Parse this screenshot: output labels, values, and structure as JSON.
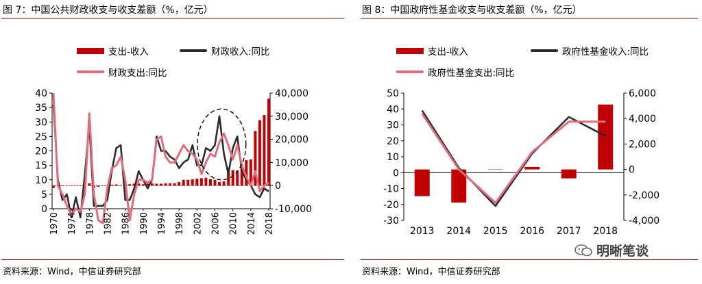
{
  "left": {
    "title": "图 7：中国公共财政收支与收支差额（%，亿元）",
    "source": "资料来源：Wind，中信证券研究部",
    "legend": {
      "bar": "支出-收入",
      "line1": "财政收入:同比",
      "line2": "财政支出:同比"
    }
  },
  "right": {
    "title": "图 8：中国政府性基金收支与收支差额（%，亿元）",
    "source": "资料来源：Wind，中信证券研究部",
    "legend": {
      "bar": "支出-收入",
      "line1": "政府性基金收入:同比",
      "line2": "政府性基金支出:同比"
    }
  },
  "watermark": "明晰笔谈",
  "colors": {
    "bar": "#c00000",
    "revenue_line": "#2b2b2b",
    "expenditure_line": "#e46c7a",
    "rule": "#7a0000"
  },
  "chart_data": [
    {
      "type": "bar+line",
      "x": [
        1970,
        1971,
        1972,
        1973,
        1974,
        1975,
        1976,
        1977,
        1978,
        1979,
        1980,
        1981,
        1982,
        1983,
        1984,
        1985,
        1986,
        1987,
        1988,
        1989,
        1990,
        1991,
        1992,
        1993,
        1994,
        1995,
        1996,
        1997,
        1998,
        1999,
        2000,
        2001,
        2002,
        2003,
        2004,
        2005,
        2006,
        2007,
        2008,
        2009,
        2010,
        2011,
        2012,
        2013,
        2014,
        2015,
        2016,
        2017,
        2018
      ],
      "x_ticks": [
        "1970",
        "1974",
        "1978",
        "1982",
        "1986",
        "1990",
        "1994",
        "1998",
        "2002",
        "2006",
        "2010",
        "2014",
        "2018"
      ],
      "y_left": {
        "range": [
          0,
          40
        ],
        "ticks": [
          "0",
          "5",
          "10",
          "15",
          "20",
          "25",
          "30",
          "35",
          "40"
        ]
      },
      "y_right": {
        "range": [
          -10000,
          40000
        ],
        "ticks": [
          "-10,000",
          "0",
          "10,000",
          "20,000",
          "30,000",
          "40,000"
        ]
      },
      "series": [
        {
          "name": "支出-收入",
          "type": "bar",
          "axis": "right",
          "values": [
            -1000,
            0,
            0,
            0,
            -100,
            0,
            0,
            0,
            1000,
            -1000,
            -500,
            0,
            200,
            400,
            500,
            0,
            200,
            600,
            800,
            900,
            600,
            800,
            900,
            800,
            800,
            1000,
            1000,
            1000,
            1500,
            2500,
            2500,
            2700,
            3000,
            3200,
            3400,
            2800,
            2500,
            1600,
            1800,
            7800,
            6700,
            6500,
            8500,
            11000,
            11300,
            23600,
            28300,
            30500,
            37600
          ]
        },
        {
          "name": "财政收入:同比",
          "type": "line",
          "axis": "left",
          "values": [
            36,
            10,
            3,
            5,
            -3,
            4,
            -3,
            12,
            29,
            1,
            1,
            1,
            3,
            13,
            21,
            22,
            3,
            3,
            7,
            13,
            10,
            7,
            10,
            25,
            20,
            20,
            18,
            17,
            14,
            16,
            17,
            22,
            15,
            15,
            21,
            20,
            22,
            32,
            19,
            12,
            21,
            25,
            13,
            10,
            8,
            5,
            4,
            7,
            6
          ]
        },
        {
          "name": "财政支出:同比",
          "type": "line",
          "axis": "left",
          "values": [
            40,
            8,
            5,
            1,
            -2,
            0,
            -1,
            5,
            33,
            5,
            -4,
            -5,
            7,
            14,
            15,
            18,
            10,
            -4,
            5,
            10,
            10,
            9,
            10,
            24,
            25,
            18,
            16,
            16,
            19,
            22,
            20,
            19,
            17,
            12,
            16,
            19,
            18,
            23,
            26,
            22,
            17,
            22,
            15,
            11,
            8,
            13,
            6,
            8,
            9
          ]
        }
      ],
      "dashed_ellipse_annotation": true
    },
    {
      "type": "bar+line",
      "categories": [
        "2013",
        "2014",
        "2015",
        "2016",
        "2017",
        "2018"
      ],
      "y_left": {
        "range": [
          -30,
          50
        ],
        "ticks": [
          "-30",
          "-20",
          "-10",
          "0",
          "10",
          "20",
          "30",
          "40",
          "50"
        ]
      },
      "y_right": {
        "range": [
          -4000,
          6000
        ],
        "ticks": [
          "-4,000",
          "-2,000",
          "0",
          "2,000",
          "4,000",
          "6,000"
        ]
      },
      "series": [
        {
          "name": "支出-收入",
          "type": "bar",
          "axis": "right",
          "values": [
            -2100,
            -2600,
            0,
            200,
            -700,
            5100
          ]
        },
        {
          "name": "政府性基金收入:同比",
          "type": "line",
          "axis": "left",
          "values": [
            39,
            3,
            -21,
            12,
            35,
            23
          ]
        },
        {
          "name": "政府性基金支出:同比",
          "type": "line",
          "axis": "left",
          "values": [
            37,
            2,
            -19,
            13,
            32,
            32
          ]
        }
      ]
    }
  ]
}
